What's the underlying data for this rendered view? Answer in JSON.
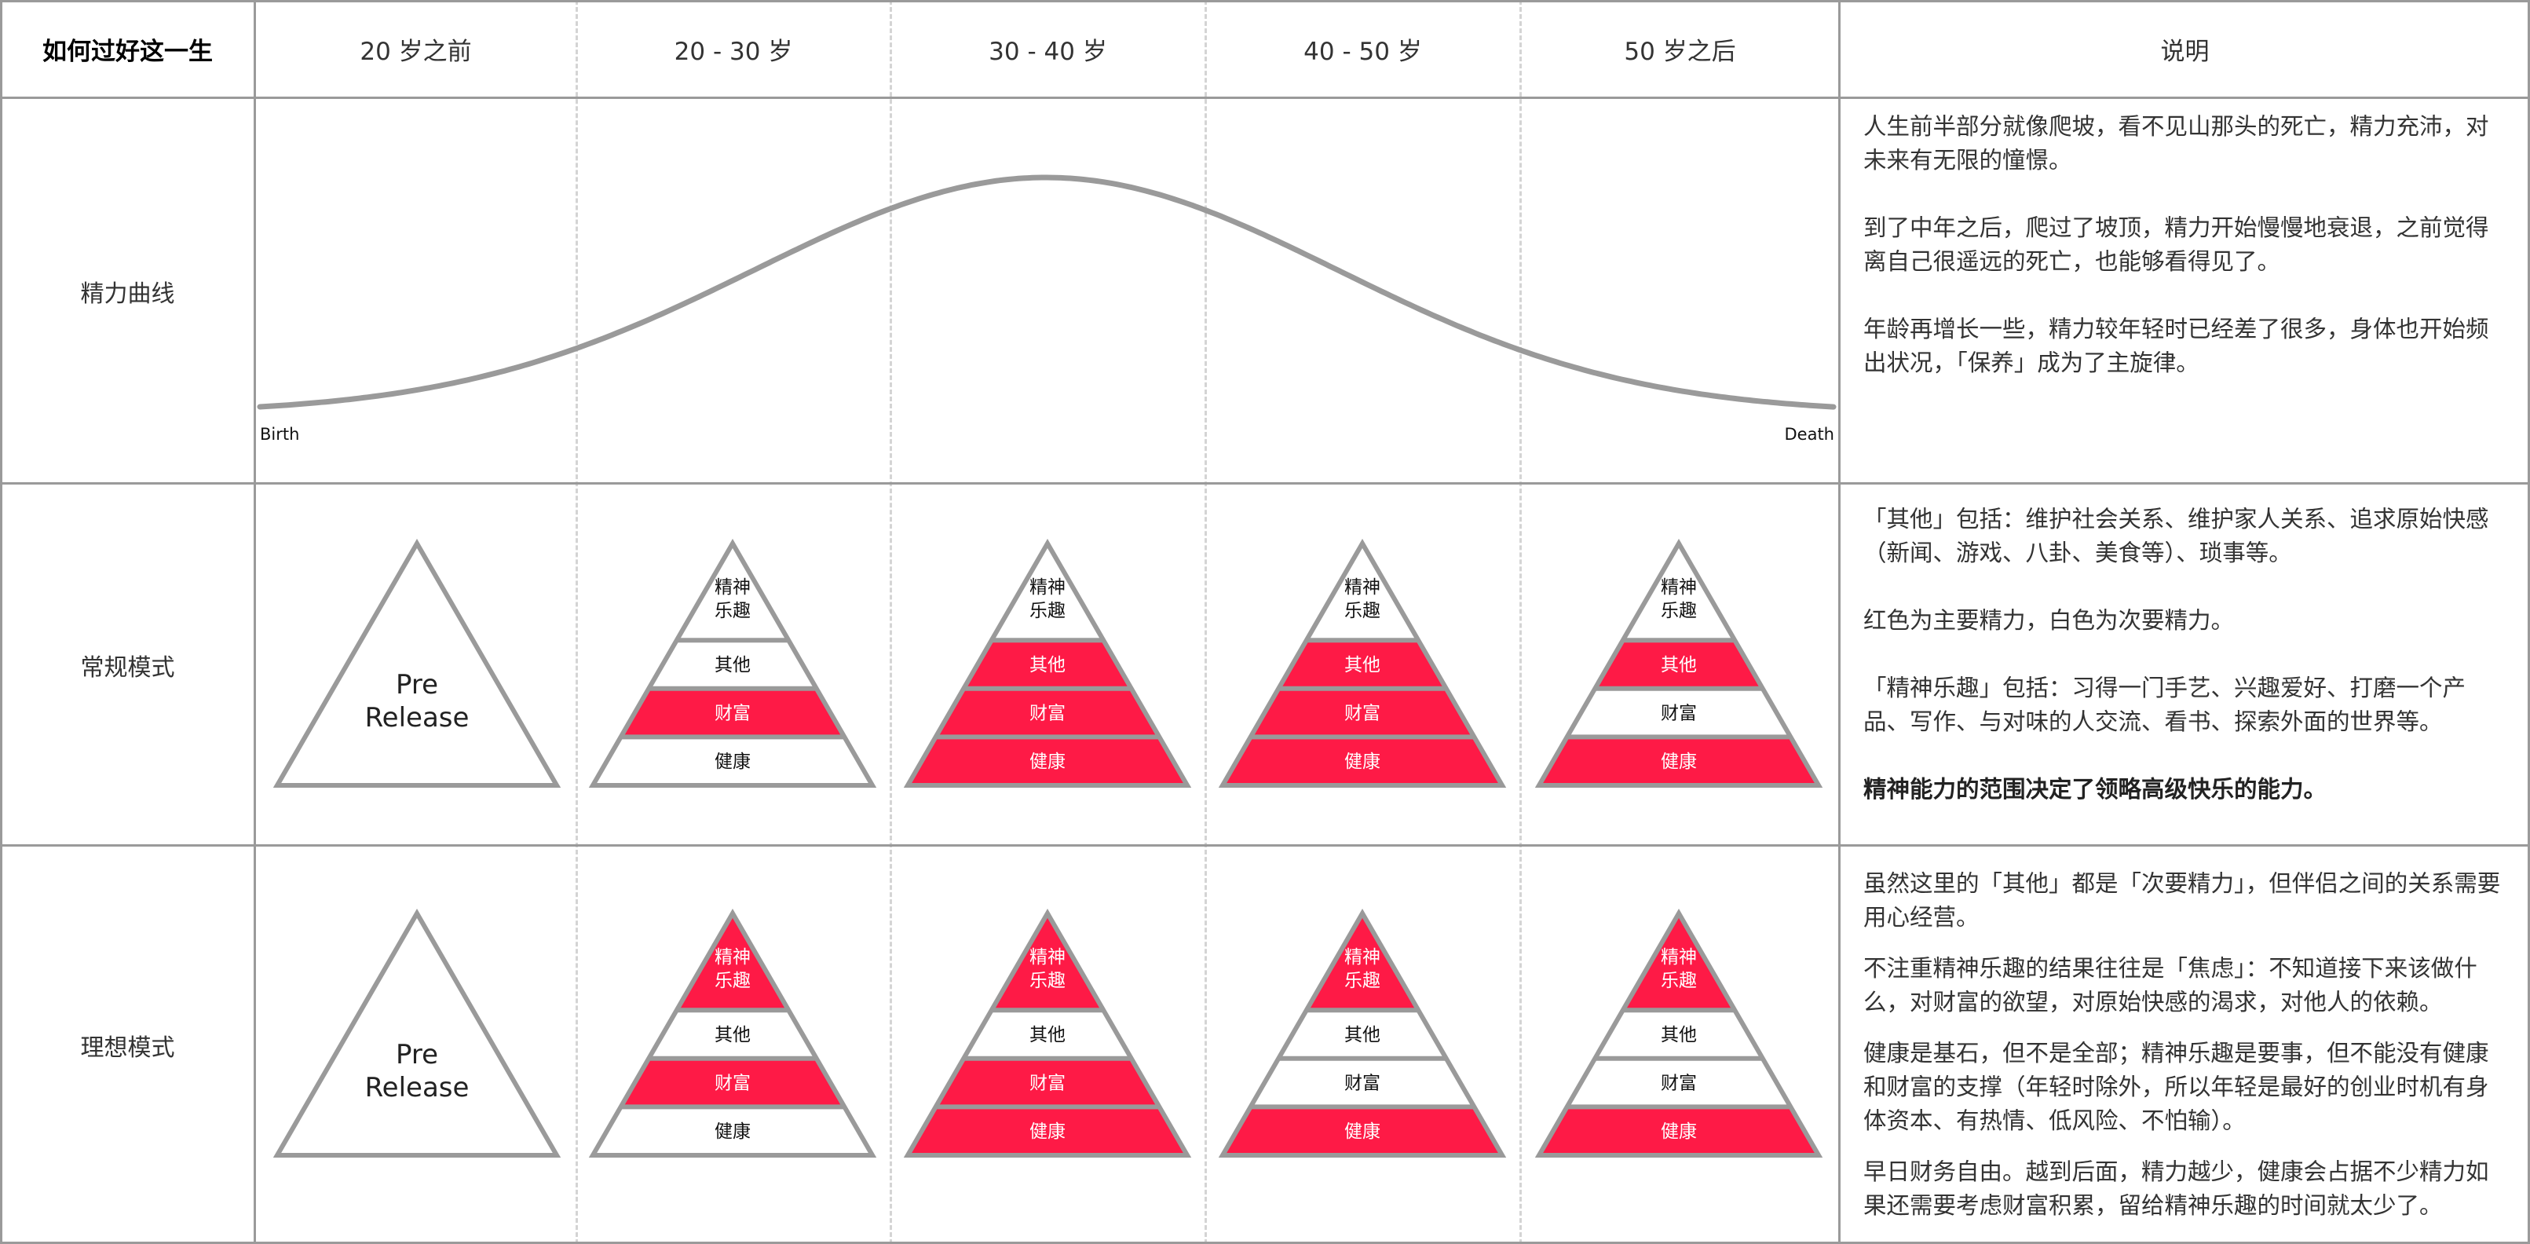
{
  "header": {
    "title": "如何过好这一生",
    "columns": [
      "20 岁之前",
      "20 - 30 岁",
      "30 - 40 岁",
      "40 - 50 岁",
      "50 岁之后"
    ],
    "notes": "说明"
  },
  "energy_curve": {
    "label": "精力曲线",
    "start_label": "Birth",
    "end_label": "Death",
    "notes": [
      "人生前半部分就像爬坡，看不见山那头的死亡，精力充沛，对未来有无限的憧憬。",
      "到了中年之后，爬过了坡顶，精力开始慢慢地衰退，之前觉得离自己很遥远的死亡，也能够看得见了。",
      "年龄再增长一些，精力较年轻时已经差了很多，身体也开始频出状况，「保养」成为了主旋律。"
    ]
  },
  "colors": {
    "primary": "#fe1a46",
    "secondary": "#ffffff",
    "stroke": "#9a9a9a"
  },
  "rows": [
    {
      "label": "常规模式",
      "pre_release": [
        "Pre",
        "Release"
      ],
      "pyramids": [
        {
          "layers": [
            {
              "label": "精神乐趣",
              "primary": false
            },
            {
              "label": "其他",
              "primary": false
            },
            {
              "label": "财富",
              "primary": true
            },
            {
              "label": "健康",
              "primary": false
            }
          ]
        },
        {
          "layers": [
            {
              "label": "精神乐趣",
              "primary": false
            },
            {
              "label": "其他",
              "primary": true
            },
            {
              "label": "财富",
              "primary": true
            },
            {
              "label": "健康",
              "primary": true
            }
          ]
        },
        {
          "layers": [
            {
              "label": "精神乐趣",
              "primary": false
            },
            {
              "label": "其他",
              "primary": true
            },
            {
              "label": "财富",
              "primary": true
            },
            {
              "label": "健康",
              "primary": true
            }
          ]
        },
        {
          "layers": [
            {
              "label": "精神乐趣",
              "primary": false
            },
            {
              "label": "其他",
              "primary": true
            },
            {
              "label": "财富",
              "primary": false
            },
            {
              "label": "健康",
              "primary": true
            }
          ]
        }
      ],
      "notes": [
        "「其他」包括：维护社会关系、维护家人关系、追求原始快感（新闻、游戏、八卦、美食等）、琐事等。",
        "红色为主要精力，白色为次要精力。",
        "「精神乐趣」包括：习得一门手艺、兴趣爱好、打磨一个产品、写作、与对味的人交流、看书、探索外面的世界等。"
      ],
      "emphasis": "精神能力的范围决定了领略高级快乐的能力。"
    },
    {
      "label": "理想模式",
      "pre_release": [
        "Pre",
        "Release"
      ],
      "pyramids": [
        {
          "layers": [
            {
              "label": "精神乐趣",
              "primary": true
            },
            {
              "label": "其他",
              "primary": false
            },
            {
              "label": "财富",
              "primary": true
            },
            {
              "label": "健康",
              "primary": false
            }
          ]
        },
        {
          "layers": [
            {
              "label": "精神乐趣",
              "primary": true
            },
            {
              "label": "其他",
              "primary": false
            },
            {
              "label": "财富",
              "primary": true
            },
            {
              "label": "健康",
              "primary": true
            }
          ]
        },
        {
          "layers": [
            {
              "label": "精神乐趣",
              "primary": true
            },
            {
              "label": "其他",
              "primary": false
            },
            {
              "label": "财富",
              "primary": false
            },
            {
              "label": "健康",
              "primary": true
            }
          ]
        },
        {
          "layers": [
            {
              "label": "精神乐趣",
              "primary": true
            },
            {
              "label": "其他",
              "primary": false
            },
            {
              "label": "财富",
              "primary": false
            },
            {
              "label": "健康",
              "primary": true
            }
          ]
        }
      ],
      "notes": [
        "虽然这里的「其他」都是「次要精力」，但伴侣之间的关系需要用心经营。",
        "不注重精神乐趣的结果往往是「焦虑」：不知道接下来该做什么，对财富的欲望，对原始快感的渴求，对他人的依赖。",
        "健康是基石，但不是全部；精神乐趣是要事，但不能没有健康和财富的支撑（年轻时除外，所以年轻是最好的创业时机有身体资本、有热情、低风险、不怕输）。",
        "早日财务自由。越到后面，精力越少，健康会占据不少精力如果还需要考虑财富积累，留给精神乐趣的时间就太少了。"
      ]
    }
  ]
}
